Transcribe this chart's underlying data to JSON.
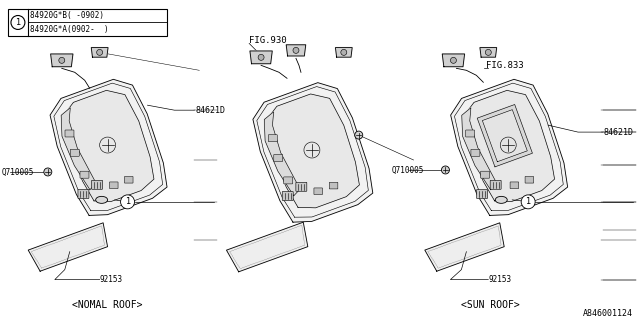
{
  "bg_color": "#ffffff",
  "line_color": "#000000",
  "fig_width": 6.4,
  "fig_height": 3.2,
  "part_labels": {
    "84621D": "84621D",
    "92153": "92153",
    "Q710005": "Q710005",
    "FIG930": "FIG.930",
    "FIG833": "FIG.833",
    "legend_1": "84920G*B( -0902)",
    "legend_2": "84920G*A(0902-  )",
    "normal_roof": "<NOMAL ROOF>",
    "sun_roof": "<SUN ROOF>",
    "part_num": "A846001124"
  }
}
